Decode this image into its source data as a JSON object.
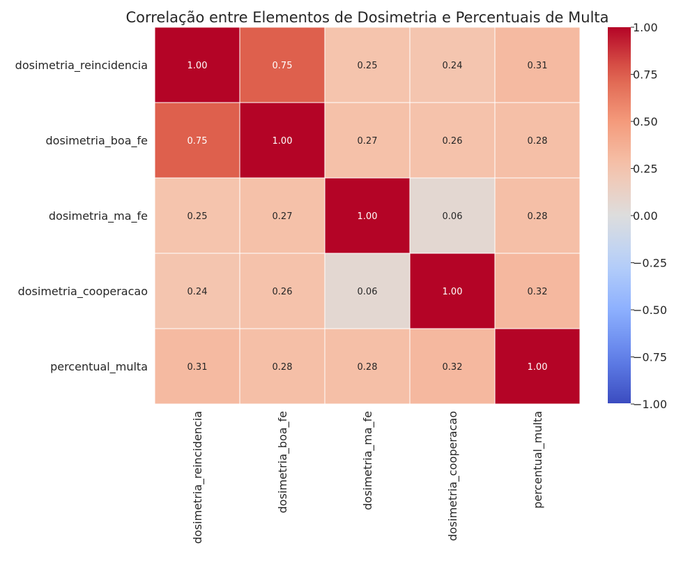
{
  "chart_data": {
    "type": "heatmap",
    "title": "Correlação entre Elementos de Dosimetria e Percentuais de Multa",
    "xlabel": "",
    "ylabel": "",
    "rows": [
      "dosimetria_reincidencia",
      "dosimetria_boa_fe",
      "dosimetria_ma_fe",
      "dosimetria_cooperacao",
      "percentual_multa"
    ],
    "columns": [
      "dosimetria_reincidencia",
      "dosimetria_boa_fe",
      "dosimetria_ma_fe",
      "dosimetria_cooperacao",
      "percentual_multa"
    ],
    "values": [
      [
        1.0,
        0.75,
        0.25,
        0.24,
        0.31
      ],
      [
        0.75,
        1.0,
        0.27,
        0.26,
        0.28
      ],
      [
        0.25,
        0.27,
        1.0,
        0.06,
        0.28
      ],
      [
        0.24,
        0.26,
        0.06,
        1.0,
        0.32
      ],
      [
        0.31,
        0.28,
        0.28,
        0.32,
        1.0
      ]
    ],
    "value_format": "0.00",
    "colormap": "coolwarm",
    "vmin": -1.0,
    "vmax": 1.0,
    "colorbar_ticks": [
      -1.0,
      -0.75,
      -0.5,
      -0.25,
      0.0,
      0.25,
      0.5,
      0.75,
      1.0
    ],
    "colorbar_tick_labels": [
      "−1.00",
      "−0.75",
      "−0.50",
      "−0.25",
      "0.00",
      "0.25",
      "0.50",
      "0.75",
      "1.00"
    ],
    "colorbar_placement": "right",
    "grid": false
  }
}
